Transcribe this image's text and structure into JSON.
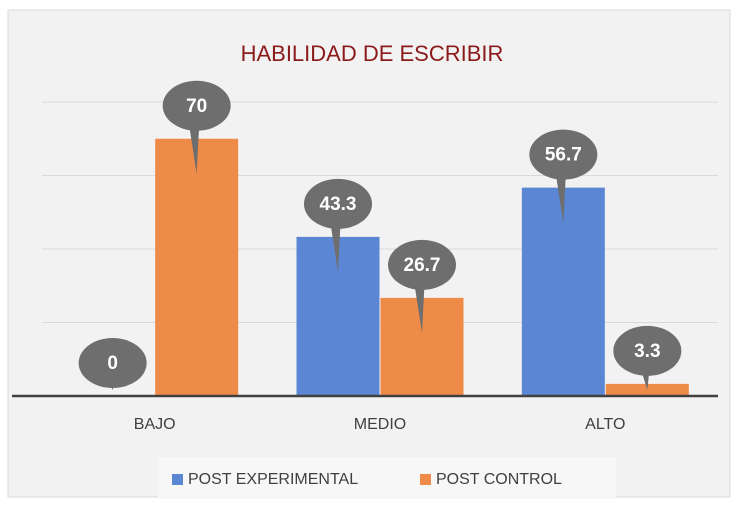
{
  "chart_data": {
    "type": "bar",
    "title": "HABILIDAD DE ESCRIBIR",
    "categories": [
      "BAJO",
      "MEDIO",
      "ALTO"
    ],
    "series": [
      {
        "name": "POST EXPERIMENTAL",
        "color": "#5b86d3",
        "values": [
          0,
          43.3,
          56.7
        ]
      },
      {
        "name": "POST CONTROL",
        "color": "#ef8b48",
        "values": [
          70,
          26.7,
          3.3
        ]
      }
    ],
    "ylim": [
      0,
      80
    ],
    "yticks": [
      0,
      20,
      40,
      60,
      80
    ],
    "grid": true,
    "legend": "bottom"
  }
}
